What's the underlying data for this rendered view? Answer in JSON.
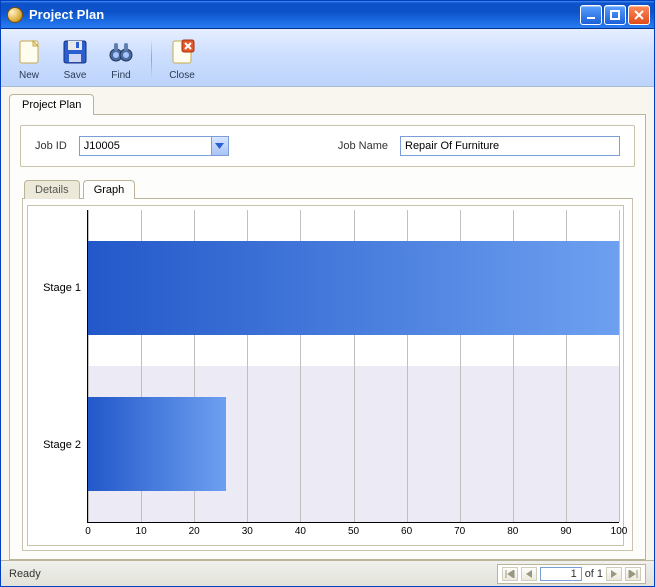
{
  "window": {
    "title": "Project Plan",
    "title_color": "#ffffff",
    "title_bg_from": "#3f8cf3",
    "title_bg_to": "#1868e0"
  },
  "toolbar": {
    "items": [
      {
        "name": "new-button",
        "label": "New",
        "icon": "file-new-icon"
      },
      {
        "name": "save-button",
        "label": "Save",
        "icon": "floppy-icon"
      },
      {
        "name": "find-button",
        "label": "Find",
        "icon": "binoculars-icon"
      },
      {
        "name": "close-button",
        "label": "Close",
        "icon": "close-doc-icon"
      }
    ]
  },
  "outer_tab": {
    "label": "Project Plan"
  },
  "job": {
    "id_label": "Job ID",
    "id_value": "J10005",
    "name_label": "Job Name",
    "name_value": "Repair Of Furniture"
  },
  "inner_tabs": [
    {
      "label": "Details",
      "active": false
    },
    {
      "label": "Graph",
      "active": true
    }
  ],
  "chart": {
    "type": "bar",
    "orientation": "horizontal",
    "categories": [
      "Stage 1",
      "Stage 2"
    ],
    "values": [
      100,
      26
    ],
    "xmin": 0,
    "xmax": 100,
    "xtick_step": 10,
    "bar_gradient_from": "#2258c9",
    "bar_gradient_to": "#6ea0f0",
    "band_color": "#eceaf4",
    "grid_color": "#c0c0c0",
    "tick_fontsize": 10,
    "label_fontsize": 11
  },
  "statusbar": {
    "text": "Ready",
    "pager": {
      "current": "1",
      "sep": "of",
      "total": "1"
    }
  }
}
